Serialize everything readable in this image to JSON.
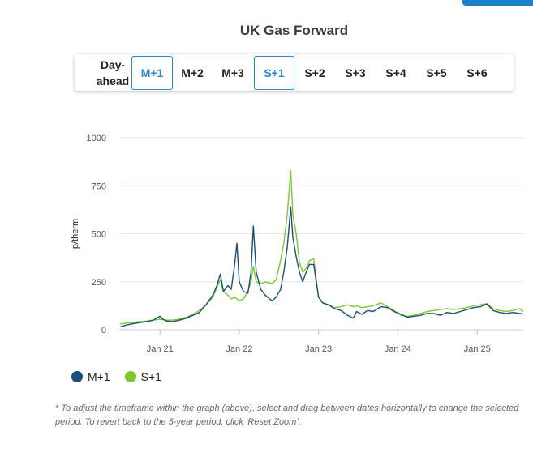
{
  "title": "UK Gas Forward",
  "tabs": [
    {
      "label": "Day-ahead",
      "line1": "Day-",
      "line2": "ahead",
      "active": false
    },
    {
      "label": "M+1",
      "active": true
    },
    {
      "label": "M+2",
      "active": false
    },
    {
      "label": "M+3",
      "active": false
    },
    {
      "label": "S+1",
      "active": true
    },
    {
      "label": "S+2",
      "active": false
    },
    {
      "label": "S+3",
      "active": false
    },
    {
      "label": "S+4",
      "active": false
    },
    {
      "label": "S+5",
      "active": false
    },
    {
      "label": "S+6",
      "active": false
    }
  ],
  "footnote": "* To adjust the timeframe within the graph (above), select and drag between dates horizontally to change the selected period. To revert back to the 5-year period, click ‘Reset Zoom’.",
  "chart_data": {
    "type": "line",
    "ylabel": "p/therm",
    "ylim": [
      0,
      1000
    ],
    "yticks": [
      0,
      250,
      500,
      750,
      1000
    ],
    "xlim": [
      "2020-07-01",
      "2025-08-01"
    ],
    "xticks": [
      {
        "label": "Jan 21",
        "date": "2021-01-01"
      },
      {
        "label": "Jan 22",
        "date": "2022-01-01"
      },
      {
        "label": "Jan 23",
        "date": "2023-01-01"
      },
      {
        "label": "Jan 24",
        "date": "2024-01-01"
      },
      {
        "label": "Jan 25",
        "date": "2025-01-01"
      }
    ],
    "grid": true,
    "legend_position": "bottom-left",
    "series": [
      {
        "name": "M+1",
        "color": "#1b4f78",
        "points": [
          [
            "2020-07-01",
            15
          ],
          [
            "2020-08-01",
            25
          ],
          [
            "2020-09-01",
            32
          ],
          [
            "2020-10-01",
            38
          ],
          [
            "2020-11-01",
            42
          ],
          [
            "2020-12-01",
            50
          ],
          [
            "2021-01-01",
            70
          ],
          [
            "2021-01-15",
            55
          ],
          [
            "2021-02-01",
            45
          ],
          [
            "2021-03-01",
            42
          ],
          [
            "2021-04-01",
            50
          ],
          [
            "2021-05-01",
            60
          ],
          [
            "2021-06-01",
            75
          ],
          [
            "2021-07-01",
            90
          ],
          [
            "2021-08-01",
            130
          ],
          [
            "2021-09-01",
            180
          ],
          [
            "2021-09-20",
            230
          ],
          [
            "2021-10-06",
            290
          ],
          [
            "2021-10-20",
            200
          ],
          [
            "2021-11-10",
            230
          ],
          [
            "2021-11-25",
            210
          ],
          [
            "2021-12-10",
            330
          ],
          [
            "2021-12-21",
            450
          ],
          [
            "2022-01-01",
            250
          ],
          [
            "2022-01-20",
            200
          ],
          [
            "2022-02-10",
            190
          ],
          [
            "2022-02-24",
            300
          ],
          [
            "2022-03-07",
            540
          ],
          [
            "2022-03-20",
            300
          ],
          [
            "2022-04-10",
            210
          ],
          [
            "2022-05-01",
            180
          ],
          [
            "2022-06-01",
            150
          ],
          [
            "2022-06-20",
            170
          ],
          [
            "2022-07-10",
            210
          ],
          [
            "2022-07-25",
            300
          ],
          [
            "2022-08-10",
            430
          ],
          [
            "2022-08-26",
            640
          ],
          [
            "2022-09-05",
            480
          ],
          [
            "2022-09-20",
            380
          ],
          [
            "2022-10-05",
            300
          ],
          [
            "2022-10-20",
            250
          ],
          [
            "2022-11-05",
            300
          ],
          [
            "2022-11-20",
            340
          ],
          [
            "2022-12-10",
            340
          ],
          [
            "2023-01-01",
            170
          ],
          [
            "2023-01-20",
            140
          ],
          [
            "2023-02-15",
            130
          ],
          [
            "2023-03-15",
            110
          ],
          [
            "2023-04-15",
            100
          ],
          [
            "2023-05-15",
            75
          ],
          [
            "2023-06-10",
            60
          ],
          [
            "2023-06-25",
            95
          ],
          [
            "2023-07-20",
            80
          ],
          [
            "2023-08-15",
            100
          ],
          [
            "2023-09-10",
            95
          ],
          [
            "2023-10-15",
            120
          ],
          [
            "2023-11-15",
            115
          ],
          [
            "2023-12-15",
            95
          ],
          [
            "2024-01-15",
            80
          ],
          [
            "2024-02-15",
            65
          ],
          [
            "2024-03-15",
            70
          ],
          [
            "2024-04-15",
            75
          ],
          [
            "2024-05-15",
            85
          ],
          [
            "2024-06-15",
            85
          ],
          [
            "2024-07-15",
            75
          ],
          [
            "2024-08-15",
            90
          ],
          [
            "2024-09-15",
            85
          ],
          [
            "2024-10-15",
            95
          ],
          [
            "2024-11-15",
            105
          ],
          [
            "2024-12-15",
            115
          ],
          [
            "2025-01-15",
            120
          ],
          [
            "2025-02-15",
            135
          ],
          [
            "2025-03-15",
            100
          ],
          [
            "2025-04-15",
            90
          ],
          [
            "2025-05-15",
            85
          ],
          [
            "2025-06-15",
            90
          ],
          [
            "2025-07-15",
            85
          ],
          [
            "2025-08-01",
            82
          ]
        ]
      },
      {
        "name": "S+1",
        "color": "#7dc82d",
        "points": [
          [
            "2020-07-01",
            30
          ],
          [
            "2020-08-01",
            35
          ],
          [
            "2020-09-01",
            38
          ],
          [
            "2020-10-01",
            42
          ],
          [
            "2020-11-01",
            45
          ],
          [
            "2020-12-01",
            50
          ],
          [
            "2021-01-01",
            55
          ],
          [
            "2021-02-01",
            50
          ],
          [
            "2021-03-01",
            50
          ],
          [
            "2021-04-01",
            55
          ],
          [
            "2021-05-01",
            65
          ],
          [
            "2021-06-01",
            80
          ],
          [
            "2021-07-01",
            100
          ],
          [
            "2021-08-01",
            130
          ],
          [
            "2021-09-01",
            170
          ],
          [
            "2021-09-20",
            220
          ],
          [
            "2021-10-06",
            260
          ],
          [
            "2021-10-20",
            200
          ],
          [
            "2021-11-10",
            180
          ],
          [
            "2021-11-25",
            160
          ],
          [
            "2021-12-10",
            170
          ],
          [
            "2021-12-21",
            160
          ],
          [
            "2022-01-01",
            150
          ],
          [
            "2022-01-20",
            160
          ],
          [
            "2022-02-10",
            200
          ],
          [
            "2022-02-24",
            250
          ],
          [
            "2022-03-07",
            330
          ],
          [
            "2022-03-20",
            250
          ],
          [
            "2022-04-10",
            240
          ],
          [
            "2022-05-01",
            250
          ],
          [
            "2022-06-01",
            240
          ],
          [
            "2022-06-20",
            260
          ],
          [
            "2022-07-10",
            360
          ],
          [
            "2022-07-25",
            450
          ],
          [
            "2022-08-10",
            600
          ],
          [
            "2022-08-26",
            830
          ],
          [
            "2022-09-05",
            600
          ],
          [
            "2022-09-20",
            500
          ],
          [
            "2022-10-05",
            350
          ],
          [
            "2022-10-20",
            300
          ],
          [
            "2022-11-05",
            320
          ],
          [
            "2022-11-20",
            360
          ],
          [
            "2022-12-10",
            370
          ],
          [
            "2023-01-01",
            170
          ],
          [
            "2023-01-20",
            140
          ],
          [
            "2023-02-15",
            130
          ],
          [
            "2023-03-15",
            115
          ],
          [
            "2023-04-15",
            120
          ],
          [
            "2023-05-15",
            130
          ],
          [
            "2023-06-10",
            120
          ],
          [
            "2023-06-25",
            125
          ],
          [
            "2023-07-20",
            115
          ],
          [
            "2023-08-15",
            120
          ],
          [
            "2023-09-10",
            125
          ],
          [
            "2023-10-15",
            140
          ],
          [
            "2023-11-15",
            120
          ],
          [
            "2023-12-15",
            100
          ],
          [
            "2024-01-15",
            75
          ],
          [
            "2024-02-15",
            70
          ],
          [
            "2024-03-15",
            75
          ],
          [
            "2024-04-15",
            85
          ],
          [
            "2024-05-15",
            95
          ],
          [
            "2024-06-15",
            100
          ],
          [
            "2024-07-15",
            105
          ],
          [
            "2024-08-15",
            110
          ],
          [
            "2024-09-15",
            105
          ],
          [
            "2024-10-15",
            110
          ],
          [
            "2024-11-15",
            115
          ],
          [
            "2024-12-15",
            125
          ],
          [
            "2025-01-15",
            130
          ],
          [
            "2025-02-15",
            135
          ],
          [
            "2025-03-15",
            110
          ],
          [
            "2025-04-15",
            100
          ],
          [
            "2025-05-15",
            95
          ],
          [
            "2025-06-15",
            100
          ],
          [
            "2025-07-15",
            110
          ],
          [
            "2025-08-01",
            95
          ]
        ]
      }
    ]
  }
}
